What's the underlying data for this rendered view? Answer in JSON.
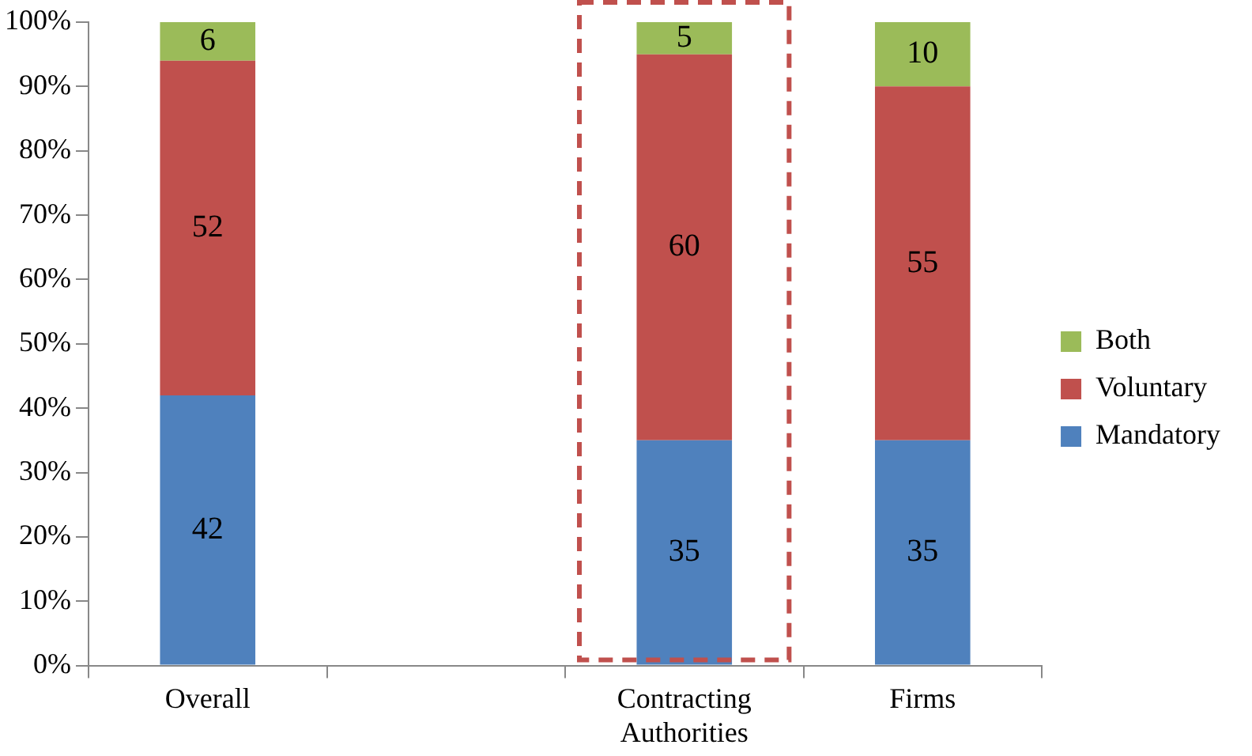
{
  "chart_data": {
    "type": "bar",
    "stacked": true,
    "categories": [
      "Overall",
      null,
      "Contracting Authorities",
      "Firms"
    ],
    "series": [
      {
        "name": "Mandatory",
        "color": "#4f81bd",
        "values": [
          42,
          null,
          35,
          35
        ]
      },
      {
        "name": "Voluntary",
        "color": "#c0504d",
        "values": [
          52,
          null,
          60,
          55
        ]
      },
      {
        "name": "Both",
        "color": "#9bbb59",
        "values": [
          6,
          null,
          5,
          10
        ]
      }
    ],
    "ylim": [
      0,
      100
    ],
    "yticks": [
      {
        "value": 0,
        "label": "0%"
      },
      {
        "value": 10,
        "label": "10%"
      },
      {
        "value": 20,
        "label": "20%"
      },
      {
        "value": 30,
        "label": "30%"
      },
      {
        "value": 40,
        "label": "40%"
      },
      {
        "value": 50,
        "label": "50%"
      },
      {
        "value": 60,
        "label": "60%"
      },
      {
        "value": 70,
        "label": "70%"
      },
      {
        "value": 80,
        "label": "80%"
      },
      {
        "value": 90,
        "label": "90%"
      },
      {
        "value": 100,
        "label": "100%"
      }
    ],
    "data_labels": true,
    "legend": "right",
    "grid": false
  }
}
